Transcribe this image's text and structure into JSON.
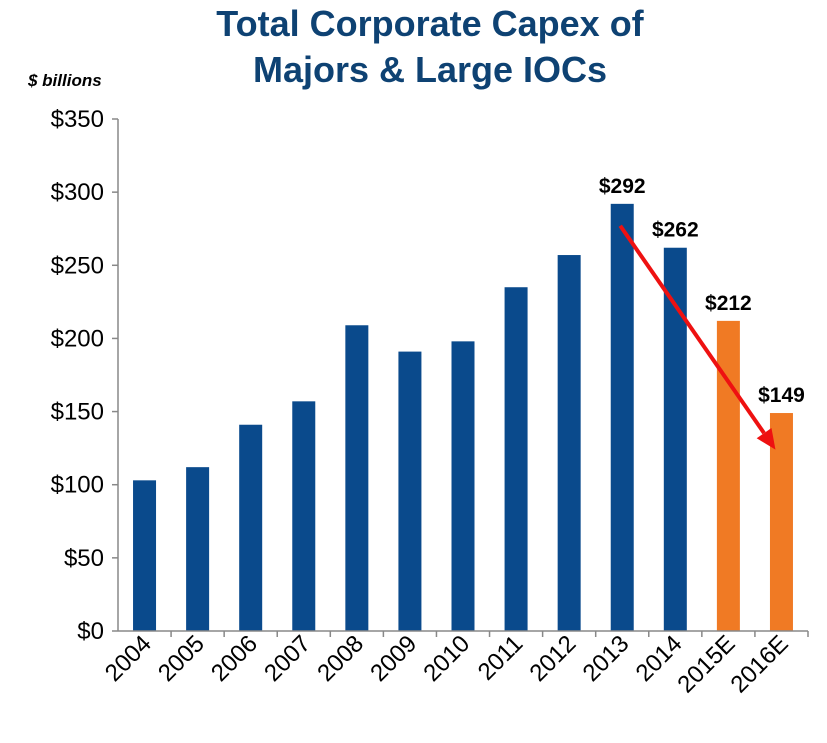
{
  "chart_data": {
    "type": "bar",
    "title_lines": [
      "Total Corporate Capex of",
      "Majors & Large IOCs"
    ],
    "ylabel": "$ billions",
    "categories": [
      "2004",
      "2005",
      "2006",
      "2007",
      "2008",
      "2009",
      "2010",
      "2011",
      "2012",
      "2013",
      "2014",
      "2015E",
      "2016E"
    ],
    "values": [
      103,
      112,
      141,
      157,
      209,
      191,
      198,
      235,
      257,
      292,
      262,
      212,
      149
    ],
    "data_labels": [
      "",
      "",
      "",
      "",
      "",
      "",
      "",
      "",
      "",
      "$292",
      "$262",
      "$212",
      "$149"
    ],
    "estimate": [
      false,
      false,
      false,
      false,
      false,
      false,
      false,
      false,
      false,
      false,
      false,
      true,
      true
    ],
    "ylim": [
      0,
      350
    ],
    "yticks": [
      0,
      50,
      100,
      150,
      200,
      250,
      300,
      350
    ],
    "ytick_labels": [
      "$0",
      "$50",
      "$100",
      "$150",
      "$200",
      "$250",
      "$300",
      "$350"
    ],
    "grid": false,
    "colors": {
      "title": "#0E4273",
      "actual": "#0A4A8C",
      "estimate": "#F07A24",
      "arrow": "#EE1111",
      "axis": "#888888",
      "text": "#000000"
    },
    "trend_arrow": {
      "from": {
        "category": "2013",
        "value": 277
      },
      "to": {
        "category": "2016E",
        "value": 124
      }
    }
  }
}
